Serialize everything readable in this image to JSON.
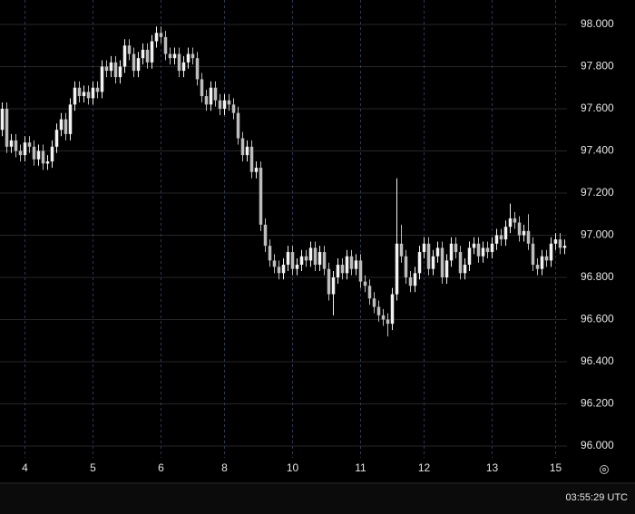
{
  "chart_data": {
    "type": "candlestick",
    "categories": [
      null,
      null,
      null,
      null,
      null,
      "4",
      null,
      null,
      null,
      null,
      null,
      null,
      null,
      null,
      null,
      null,
      null,
      null,
      null,
      null,
      "5",
      null,
      null,
      null,
      null,
      null,
      null,
      null,
      null,
      null,
      null,
      null,
      null,
      null,
      null,
      "6",
      null,
      null,
      null,
      null,
      null,
      null,
      null,
      null,
      null,
      null,
      null,
      null,
      null,
      "8",
      null,
      null,
      null,
      null,
      null,
      null,
      null,
      null,
      null,
      null,
      null,
      null,
      null,
      null,
      "10",
      null,
      null,
      null,
      null,
      null,
      null,
      null,
      null,
      null,
      null,
      null,
      null,
      null,
      null,
      "11",
      null,
      null,
      null,
      null,
      null,
      null,
      null,
      null,
      null,
      null,
      null,
      null,
      null,
      "12",
      null,
      null,
      null,
      null,
      null,
      null,
      null,
      null,
      null,
      null,
      null,
      null,
      null,
      null,
      "13",
      null,
      null,
      null,
      null,
      null,
      null,
      null,
      null,
      null,
      null,
      null,
      null,
      null,
      "15",
      null,
      null
    ],
    "open": [
      97.5,
      97.6,
      97.42,
      97.45,
      97.4,
      97.38,
      97.44,
      97.42,
      97.36,
      97.4,
      97.34,
      97.35,
      97.42,
      97.5,
      97.55,
      97.48,
      97.62,
      97.7,
      97.66,
      97.68,
      97.65,
      97.7,
      97.68,
      97.8,
      97.78,
      97.82,
      97.75,
      97.8,
      97.9,
      97.86,
      97.78,
      97.84,
      97.88,
      97.82,
      97.92,
      97.96,
      97.94,
      97.86,
      97.84,
      97.86,
      97.78,
      97.82,
      97.86,
      97.84,
      97.74,
      97.66,
      97.62,
      97.7,
      97.64,
      97.6,
      97.64,
      97.62,
      97.58,
      97.46,
      97.38,
      97.42,
      97.3,
      97.32,
      97.05,
      96.95,
      96.88,
      96.85,
      96.82,
      96.86,
      96.92,
      96.84,
      96.86,
      96.9,
      96.88,
      96.94,
      96.86,
      96.92,
      96.84,
      96.72,
      96.8,
      96.86,
      96.82,
      96.9,
      96.84,
      96.88,
      96.78,
      96.76,
      96.7,
      96.66,
      96.62,
      96.6,
      96.58,
      96.72,
      96.96,
      96.9,
      96.8,
      96.76,
      96.82,
      96.92,
      96.96,
      96.84,
      96.9,
      96.94,
      96.8,
      96.88,
      96.96,
      96.92,
      96.82,
      96.86,
      96.94,
      96.96,
      96.9,
      96.94,
      96.92,
      96.96,
      97.0,
      96.98,
      97.04,
      97.08,
      97.06,
      97.0,
      97.02,
      96.96,
      96.86,
      96.84,
      96.9,
      96.88,
      96.96,
      96.98,
      96.94
    ],
    "high": [
      97.63,
      97.63,
      97.48,
      97.48,
      97.43,
      97.47,
      97.47,
      97.45,
      97.43,
      97.43,
      97.38,
      97.45,
      97.53,
      97.58,
      97.58,
      97.65,
      97.73,
      97.73,
      97.71,
      97.71,
      97.73,
      97.73,
      97.83,
      97.83,
      97.85,
      97.85,
      97.83,
      97.93,
      97.93,
      97.89,
      97.87,
      97.91,
      97.91,
      97.95,
      97.99,
      97.99,
      97.97,
      97.89,
      97.89,
      97.89,
      97.85,
      97.89,
      97.89,
      97.87,
      97.77,
      97.69,
      97.73,
      97.73,
      97.67,
      97.67,
      97.67,
      97.65,
      97.61,
      97.49,
      97.45,
      97.45,
      97.35,
      97.35,
      97.08,
      96.98,
      96.91,
      96.88,
      96.89,
      96.95,
      96.95,
      96.89,
      96.93,
      96.93,
      96.97,
      96.97,
      96.95,
      96.95,
      96.87,
      96.83,
      96.89,
      96.89,
      96.93,
      96.93,
      96.91,
      96.91,
      96.81,
      96.79,
      96.73,
      96.69,
      96.65,
      96.63,
      96.75,
      97.27,
      97.05,
      96.93,
      96.83,
      96.85,
      96.95,
      96.99,
      96.99,
      96.93,
      96.97,
      96.97,
      96.91,
      96.99,
      96.99,
      96.95,
      96.89,
      96.97,
      96.99,
      96.99,
      96.97,
      96.97,
      96.99,
      97.03,
      97.03,
      97.07,
      97.15,
      97.11,
      97.09,
      97.05,
      97.1,
      96.99,
      96.89,
      96.93,
      96.93,
      96.99,
      97.01,
      97.01,
      96.98
    ],
    "low": [
      97.47,
      97.39,
      97.39,
      97.37,
      97.35,
      97.35,
      97.39,
      97.33,
      97.33,
      97.31,
      97.31,
      97.32,
      97.39,
      97.47,
      97.45,
      97.45,
      97.59,
      97.63,
      97.63,
      97.62,
      97.62,
      97.65,
      97.65,
      97.75,
      97.75,
      97.72,
      97.72,
      97.77,
      97.83,
      97.75,
      97.75,
      97.81,
      97.79,
      97.79,
      97.89,
      97.91,
      97.83,
      97.81,
      97.81,
      97.75,
      97.75,
      97.79,
      97.81,
      97.71,
      97.63,
      97.59,
      97.59,
      97.61,
      97.57,
      97.57,
      97.59,
      97.55,
      97.43,
      97.35,
      97.35,
      97.27,
      97.27,
      97.02,
      96.92,
      96.85,
      96.82,
      96.79,
      96.79,
      96.83,
      96.81,
      96.81,
      96.83,
      96.85,
      96.85,
      96.83,
      96.83,
      96.81,
      96.69,
      96.62,
      96.77,
      96.79,
      96.79,
      96.81,
      96.81,
      96.75,
      96.73,
      96.67,
      96.63,
      96.59,
      96.57,
      96.52,
      96.55,
      96.69,
      96.87,
      96.77,
      96.73,
      96.73,
      96.79,
      96.89,
      96.81,
      96.81,
      96.87,
      96.77,
      96.77,
      96.85,
      96.89,
      96.79,
      96.79,
      96.83,
      96.91,
      96.87,
      96.87,
      96.89,
      96.89,
      96.93,
      96.95,
      96.95,
      97.01,
      97.03,
      96.97,
      96.97,
      96.93,
      96.83,
      96.81,
      96.81,
      96.85,
      96.85,
      96.93,
      96.91,
      96.91
    ],
    "close": [
      97.6,
      97.42,
      97.45,
      97.4,
      97.38,
      97.44,
      97.42,
      97.36,
      97.4,
      97.34,
      97.35,
      97.42,
      97.5,
      97.55,
      97.48,
      97.62,
      97.7,
      97.66,
      97.68,
      97.65,
      97.7,
      97.68,
      97.8,
      97.78,
      97.82,
      97.75,
      97.8,
      97.9,
      97.86,
      97.78,
      97.84,
      97.88,
      97.82,
      97.92,
      97.96,
      97.94,
      97.86,
      97.84,
      97.86,
      97.78,
      97.82,
      97.86,
      97.84,
      97.74,
      97.66,
      97.62,
      97.7,
      97.64,
      97.6,
      97.64,
      97.62,
      97.58,
      97.46,
      97.38,
      97.42,
      97.3,
      97.32,
      97.05,
      96.95,
      96.88,
      96.85,
      96.82,
      96.86,
      96.92,
      96.84,
      96.86,
      96.9,
      96.88,
      96.94,
      96.86,
      96.92,
      96.84,
      96.72,
      96.8,
      96.86,
      96.82,
      96.9,
      96.84,
      96.88,
      96.78,
      96.76,
      96.7,
      96.66,
      96.62,
      96.6,
      96.58,
      96.72,
      96.96,
      96.9,
      96.8,
      96.76,
      96.82,
      96.92,
      96.96,
      96.84,
      96.9,
      96.94,
      96.8,
      96.88,
      96.96,
      96.92,
      96.82,
      96.86,
      96.94,
      96.96,
      96.9,
      96.94,
      96.92,
      96.96,
      97.0,
      96.98,
      97.04,
      97.08,
      97.06,
      97.0,
      97.02,
      96.96,
      96.86,
      96.84,
      96.9,
      96.88,
      96.96,
      96.98,
      96.94,
      96.95
    ],
    "up_color": "#f2f2f2",
    "down_color": "#bdbdbd",
    "ylim": [
      95.944,
      98.116
    ],
    "yticks": [
      {
        "value": 96,
        "label": "96.000"
      },
      {
        "value": 96.2,
        "label": "96.200"
      },
      {
        "value": 96.4,
        "label": "96.400"
      },
      {
        "value": 96.6,
        "label": "96.600"
      },
      {
        "value": 96.8,
        "label": "96.800"
      },
      {
        "value": 97,
        "label": "97.000"
      },
      {
        "value": 97.2,
        "label": "97.200"
      },
      {
        "value": 97.4,
        "label": "97.400"
      },
      {
        "value": 97.6,
        "label": "97.600"
      },
      {
        "value": 97.8,
        "label": "97.800"
      },
      {
        "value": 98,
        "label": "98.000"
      }
    ],
    "grid": true,
    "clock": "03:55:29 UTC"
  }
}
